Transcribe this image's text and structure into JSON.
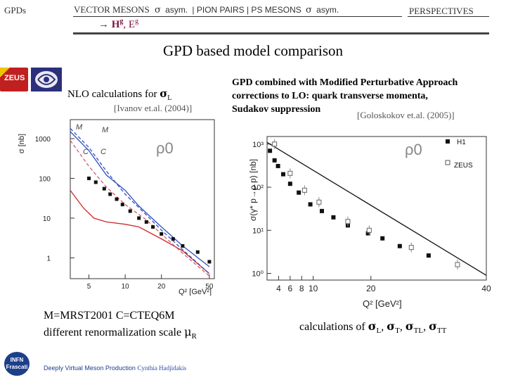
{
  "header": {
    "left_label": "GPDs",
    "nav_items": [
      "VECTOR MESONS",
      "σ",
      "asym.",
      "| PION PAIRS | PS MESONS",
      "σ",
      "asym."
    ],
    "right_label": "PERSPECTIVES",
    "sub_arrow": "→",
    "sub_h": "H",
    "sub_h_sup": "g",
    "sub_comma": ", E",
    "sub_e_sup": "g"
  },
  "slide_title": "GPD based model comparison",
  "logos": {
    "zeus": "ZEUS",
    "infn_line1": "INFN",
    "infn_line2": "Frascati"
  },
  "left_panel": {
    "heading_text": "NLO calculations for ",
    "heading_sigma": "σ",
    "heading_sub": "L",
    "citation": "[Ivanov et.al. (2004)]",
    "caption_line1": "M=MRST2001 C=CTEQ6M",
    "caption_line2_text": "different renormalization scale ",
    "caption_mu": "μ",
    "caption_sub": "R"
  },
  "right_panel": {
    "heading_line1": "GPD combined with Modified Perturbative Approach",
    "heading_line2": "corrections to LO: quark transverse momenta,",
    "heading_line3": "Sudakov suppression",
    "citation": "[Goloskokov et.al. (2005)]",
    "caption_prefix": "calculations of ",
    "caption_terms": [
      {
        "sym": "σ",
        "sub": "L",
        "sep": ", "
      },
      {
        "sym": "σ",
        "sub": "T",
        "sep": ", "
      },
      {
        "sym": "σ",
        "sub": "TL",
        "sep": ", "
      },
      {
        "sym": "σ",
        "sub": "TT",
        "sep": ""
      }
    ]
  },
  "footer": {
    "text_plain": "Deeply Virtual Meson Production ",
    "text_author": "Cynthia Hadjidakis"
  },
  "chart_data": [
    {
      "type": "line",
      "title": "ρ0",
      "xlabel": "Q² [GeV²]",
      "ylabel": "σ [nb]",
      "x_scale": "log",
      "y_scale": "log",
      "xlim": [
        3.5,
        55
      ],
      "ylim": [
        0.3,
        3000
      ],
      "x_ticks": [
        5,
        10,
        20,
        50
      ],
      "y_ticks": [
        1,
        10,
        100,
        1000
      ],
      "curve_labels": [
        "M",
        "M",
        "C",
        "C"
      ],
      "series": [
        {
          "name": "M (solid blue)",
          "x": [
            3.5,
            5,
            7,
            10,
            13,
            20,
            30,
            50
          ],
          "y": [
            1500,
            500,
            120,
            50,
            20,
            6,
            2,
            0.6
          ]
        },
        {
          "name": "C (solid red)",
          "x": [
            3.5,
            4.5,
            5.5,
            7,
            10,
            13,
            20,
            30,
            50
          ],
          "y": [
            50,
            18,
            10,
            8,
            7,
            6,
            3,
            1.5,
            0.4
          ]
        },
        {
          "name": "M (dashed)",
          "x": [
            3.5,
            5,
            7,
            10,
            15,
            20,
            30,
            50
          ],
          "y": [
            1800,
            600,
            150,
            40,
            12,
            5,
            1.6,
            0.4
          ]
        },
        {
          "name": "C (dashed)",
          "x": [
            3.5,
            5,
            7,
            10,
            15,
            20,
            30,
            50
          ],
          "y": [
            900,
            200,
            60,
            22,
            9,
            4,
            1.3,
            0.35
          ]
        },
        {
          "name": "data",
          "x": [
            5,
            5.7,
            6.7,
            7.5,
            8.5,
            9.5,
            11,
            13,
            15,
            17,
            20,
            25,
            30,
            40,
            50
          ],
          "y": [
            100,
            80,
            55,
            40,
            30,
            22,
            15,
            10,
            8,
            6,
            4,
            3,
            2,
            1.4,
            0.8
          ]
        }
      ]
    },
    {
      "type": "scatter",
      "title": "ρ0",
      "xlabel": "Q² [GeV²]",
      "ylabel": "σ(γ* p→ρ p) [nb]",
      "x_scale": "linear",
      "y_scale": "log",
      "xlim": [
        2,
        40
      ],
      "ylim": [
        0.7,
        1500
      ],
      "x_ticks": [
        4,
        6,
        8,
        10,
        20,
        40
      ],
      "y_ticks": [
        1,
        10,
        100,
        1000
      ],
      "legend": [
        "H1",
        "ZEUS"
      ],
      "legend_position": "top-right",
      "series": [
        {
          "name": "H1",
          "x": [
            2.5,
            3.3,
            3.9,
            4.8,
            6,
            7.5,
            9.5,
            11.5,
            13.5,
            16,
            19.5,
            22,
            25,
            30
          ],
          "y": [
            700,
            420,
            310,
            200,
            120,
            75,
            40,
            28,
            20,
            13,
            8.5,
            6.5,
            4.3,
            2.6
          ]
        },
        {
          "name": "ZEUS",
          "x": [
            3.3,
            6,
            8.5,
            11,
            16,
            19.7,
            27,
            35
          ],
          "y": [
            1000,
            210,
            85,
            45,
            16,
            10,
            4,
            1.6
          ]
        },
        {
          "name": "model",
          "x": [
            2,
            40
          ],
          "y": [
            1100,
            0.9
          ]
        }
      ]
    }
  ]
}
